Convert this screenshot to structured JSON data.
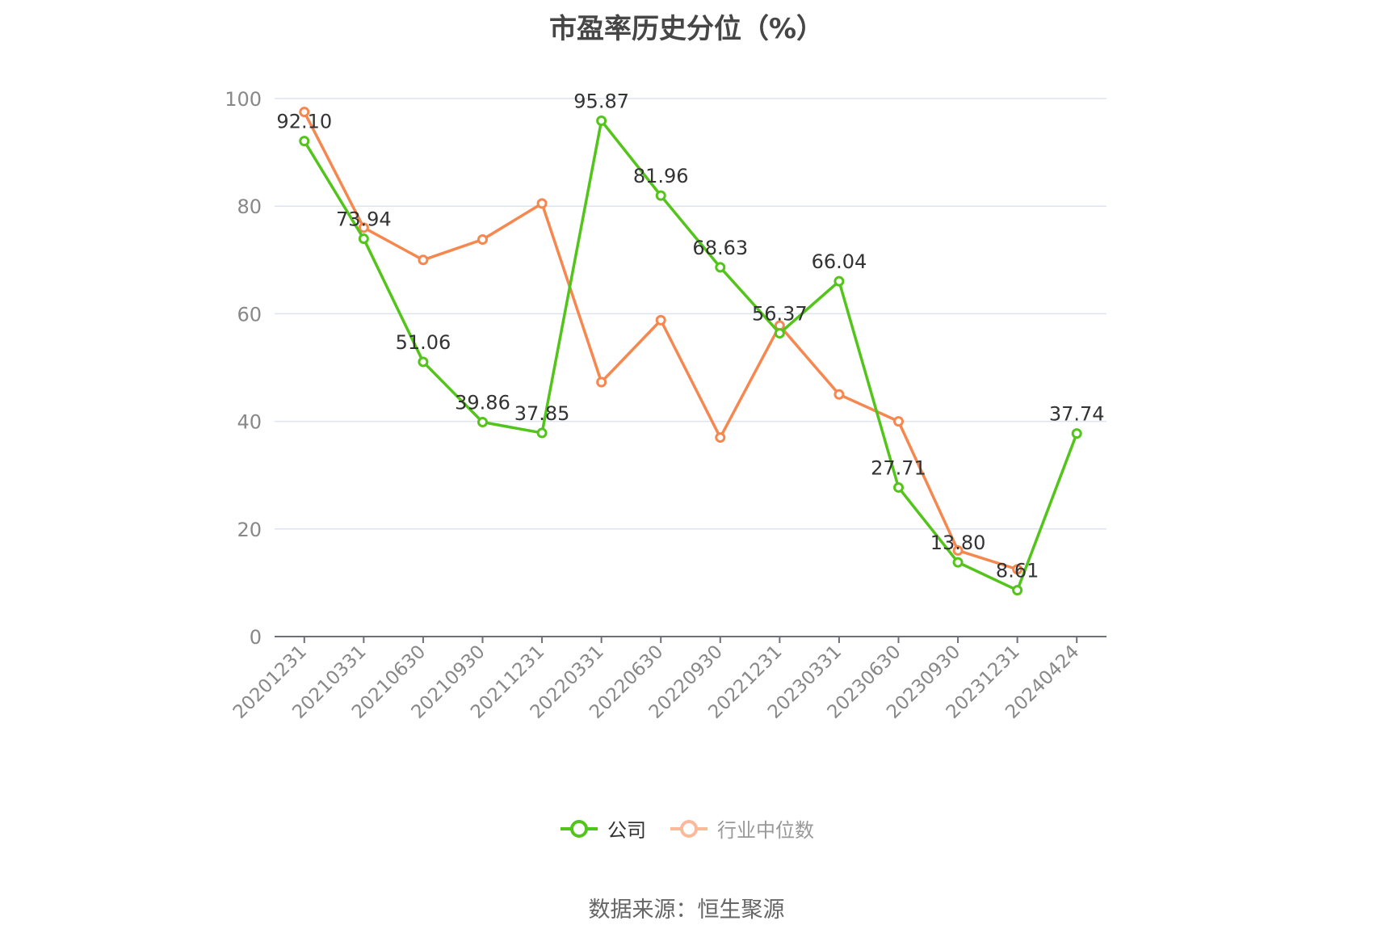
{
  "title": "市盈率历史分位（%）",
  "source": "数据来源：恒生聚源",
  "colors": {
    "company": "#52c41a",
    "industry": "#f5874f",
    "industry_legend": "#fbb89a",
    "grid": "#dde3f0",
    "axis": "#6e7079",
    "tick": "#888888",
    "label": "#333333"
  },
  "chart_data": {
    "type": "line",
    "title": "市盈率历史分位（%）",
    "xlabel": "",
    "ylabel": "",
    "ylim": [
      0,
      100
    ],
    "yticks": [
      0,
      20,
      40,
      60,
      80,
      100
    ],
    "grid": true,
    "legend_position": "bottom",
    "categories": [
      "20201231",
      "20210331",
      "20210630",
      "20210930",
      "20211231",
      "20220331",
      "20220630",
      "20220930",
      "20221231",
      "20230331",
      "20230630",
      "20230930",
      "20231231",
      "20240424"
    ],
    "series": [
      {
        "name": "公司",
        "values": [
          92.1,
          73.94,
          51.06,
          39.86,
          37.85,
          95.87,
          81.96,
          68.63,
          56.37,
          66.04,
          27.71,
          13.8,
          8.61,
          37.74
        ],
        "labels": [
          "92.10",
          "73.94",
          "51.06",
          "39.86",
          "37.85",
          "95.87",
          "81.96",
          "68.63",
          "56.37",
          "66.04",
          "27.71",
          "13.80",
          "8.61",
          "37.74"
        ]
      },
      {
        "name": "行业中位数",
        "values": [
          97.5,
          76.0,
          70.0,
          73.8,
          80.5,
          47.3,
          58.8,
          37.0,
          57.8,
          45.0,
          40.0,
          16.0,
          12.5,
          null
        ]
      }
    ]
  }
}
